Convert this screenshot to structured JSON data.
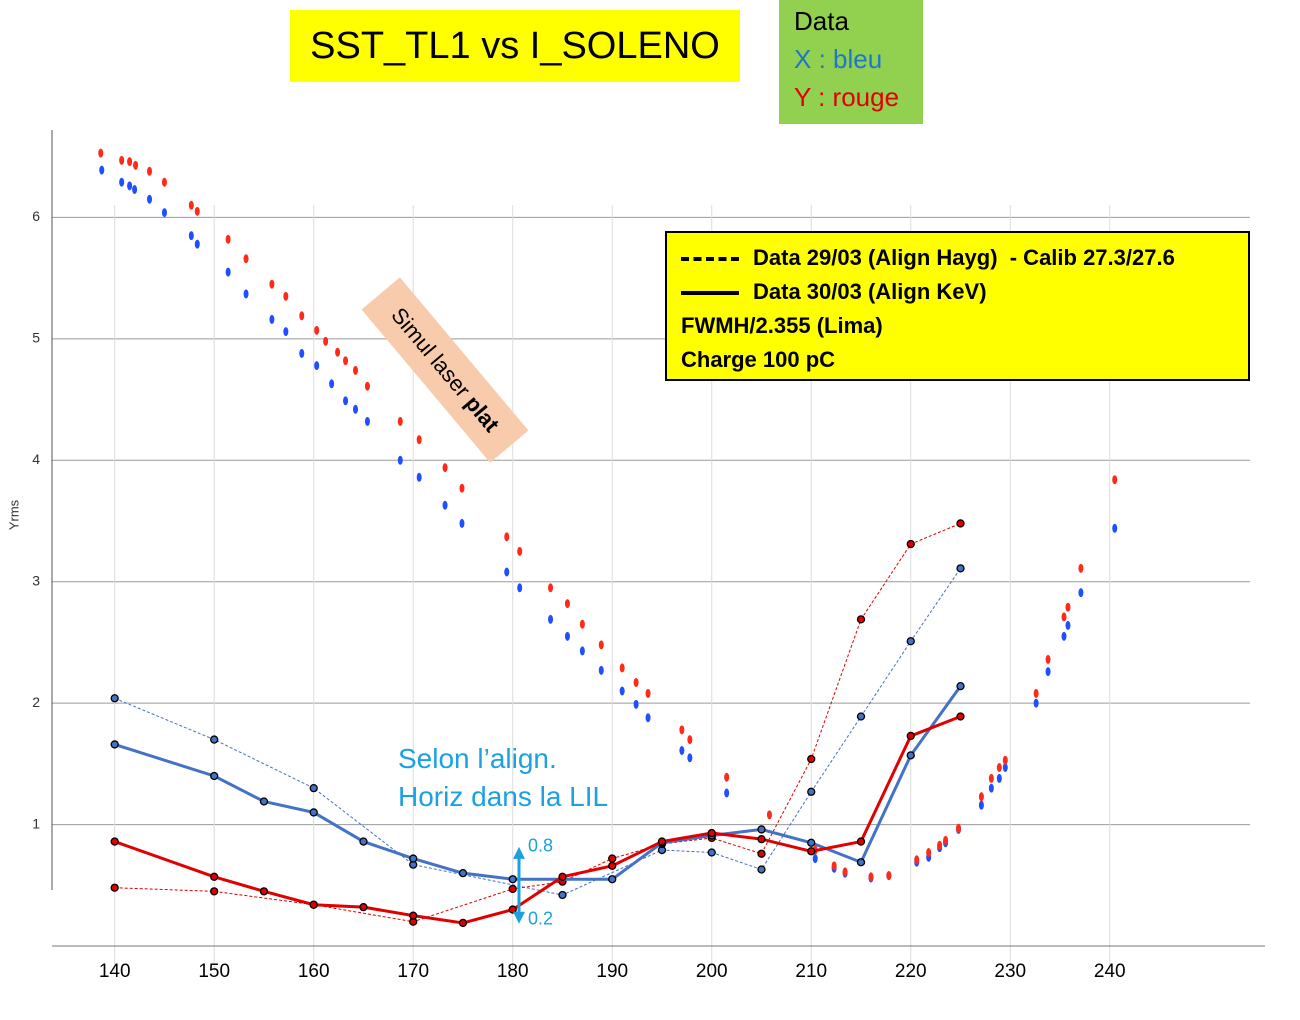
{
  "chart_data": {
    "type": "line",
    "title": "SST_TL1 vs I_SOLENO",
    "y_label": "Yrms",
    "xlim": [
      133.7,
      255.6
    ],
    "ylim": [
      0,
      6.72
    ],
    "xticks": [
      140,
      150,
      160,
      170,
      180,
      190,
      200,
      210,
      220,
      230,
      240
    ],
    "yticks": [
      1,
      2,
      3,
      4,
      5,
      6
    ],
    "grid": true,
    "data_key": {
      "title": "Data",
      "x": "X : bleu",
      "y": "Y : rouge",
      "x_color": "#1f77c9",
      "y_color": "#e00000"
    },
    "legend": {
      "dashed": "Data 29/03 (Align Hayg)  - Calib 27.3/27.6",
      "solid": "Data 30/03 (Align KeV)",
      "notes": [
        "FWMH/2.355 (Lima)",
        "Charge 100 pC"
      ]
    },
    "simul_label": {
      "text": "Simul laser ",
      "bold": "plat"
    },
    "annotation": [
      "Selon l’align.",
      "Horiz dans la LIL"
    ],
    "range_arrow": [
      0.8,
      0.2
    ],
    "series": [
      {
        "color": "#1f4fff",
        "style": "points",
        "x": [
          138.7,
          140.7,
          141.5,
          142,
          143.5,
          145,
          147.7,
          148.3,
          151.4,
          153.2,
          155.8,
          157.2,
          158.8,
          160.3,
          161.8,
          163.2,
          164.2,
          165.4,
          168.7,
          170.6,
          173.2,
          174.9,
          179.4,
          180.7,
          183.8,
          185.5,
          187,
          188.9,
          191,
          192.4,
          193.6,
          197,
          197.8,
          201.5,
          210.4,
          212.3,
          213.4,
          216,
          217.8,
          220.6,
          221.8,
          222.9,
          223.5,
          224.8,
          227.1,
          228.1,
          228.9,
          229.5,
          232.6,
          233.8,
          235.4,
          235.8,
          237.1,
          240.5
        ],
        "values": [
          6.39,
          6.29,
          6.26,
          6.23,
          6.15,
          6.04,
          5.85,
          5.78,
          5.55,
          5.37,
          5.16,
          5.06,
          4.88,
          4.78,
          4.63,
          4.49,
          4.42,
          4.32,
          4.0,
          3.86,
          3.63,
          3.48,
          3.08,
          2.95,
          2.69,
          2.55,
          2.43,
          2.27,
          2.1,
          1.99,
          1.88,
          1.61,
          1.55,
          1.26,
          0.72,
          0.64,
          0.6,
          0.56,
          0.58,
          0.69,
          0.73,
          0.81,
          0.85,
          0.96,
          1.16,
          1.3,
          1.38,
          1.47,
          2.0,
          2.26,
          2.55,
          2.64,
          2.91,
          3.44
        ]
      },
      {
        "color": "#ff2a1a",
        "style": "points",
        "x": [
          138.6,
          140.7,
          141.5,
          142.1,
          143.5,
          145,
          147.7,
          148.3,
          151.4,
          153.2,
          155.8,
          157.2,
          158.8,
          160.3,
          161.2,
          162.4,
          163.2,
          164.2,
          165.4,
          168.7,
          170.6,
          173.2,
          174.9,
          179.4,
          180.7,
          183.8,
          185.5,
          187,
          188.9,
          191,
          192.4,
          193.6,
          197,
          197.8,
          201.5,
          205.8,
          210.4,
          212.3,
          213.4,
          216,
          217.8,
          220.6,
          221.8,
          222.9,
          223.5,
          224.8,
          227.1,
          228.1,
          228.9,
          229.5,
          232.6,
          233.8,
          235.4,
          235.8,
          237.1,
          240.5
        ],
        "values": [
          6.53,
          6.47,
          6.46,
          6.43,
          6.38,
          6.29,
          6.1,
          6.05,
          5.82,
          5.66,
          5.45,
          5.35,
          5.19,
          5.07,
          4.98,
          4.89,
          4.82,
          4.74,
          4.61,
          4.32,
          4.17,
          3.94,
          3.77,
          3.37,
          3.25,
          2.95,
          2.82,
          2.65,
          2.48,
          2.29,
          2.17,
          2.08,
          1.78,
          1.7,
          1.39,
          1.08,
          0.79,
          0.66,
          0.61,
          0.57,
          0.58,
          0.71,
          0.77,
          0.83,
          0.87,
          0.97,
          1.23,
          1.38,
          1.47,
          1.53,
          2.08,
          2.36,
          2.71,
          2.79,
          3.11,
          3.84
        ]
      },
      {
        "color": "#4472c4",
        "style": "dashed",
        "x": [
          140,
          150,
          160,
          170,
          185,
          195,
          200,
          205,
          210,
          215,
          220,
          225
        ],
        "values": [
          2.04,
          1.7,
          1.3,
          0.67,
          0.42,
          0.79,
          0.77,
          0.63,
          1.27,
          1.89,
          2.51,
          3.11
        ]
      },
      {
        "color": "#e00000",
        "style": "dashed",
        "x": [
          140,
          150,
          160,
          170,
          180,
          185,
          190,
          195,
          200,
          205,
          210,
          215,
          220,
          225
        ],
        "values": [
          0.48,
          0.45,
          0.34,
          0.2,
          0.47,
          0.53,
          0.72,
          0.84,
          0.89,
          0.76,
          1.54,
          2.69,
          3.31,
          3.48
        ]
      },
      {
        "color": "#4472c4",
        "style": "solid",
        "x": [
          140,
          150,
          155,
          160,
          165,
          170,
          175,
          180,
          190,
          195,
          200,
          205,
          210,
          215,
          220,
          225
        ],
        "values": [
          1.66,
          1.4,
          1.19,
          1.1,
          0.86,
          0.72,
          0.6,
          0.55,
          0.55,
          0.85,
          0.91,
          0.96,
          0.85,
          0.69,
          1.57,
          2.14
        ]
      },
      {
        "color": "#e00000",
        "style": "solid",
        "x": [
          140,
          150,
          155,
          160,
          165,
          170,
          175,
          180,
          185,
          190,
          195,
          200,
          205,
          210,
          215,
          220,
          225
        ],
        "values": [
          0.86,
          0.57,
          0.45,
          0.34,
          0.32,
          0.25,
          0.19,
          0.3,
          0.57,
          0.66,
          0.86,
          0.93,
          0.88,
          0.78,
          0.86,
          1.73,
          1.89
        ]
      }
    ]
  }
}
